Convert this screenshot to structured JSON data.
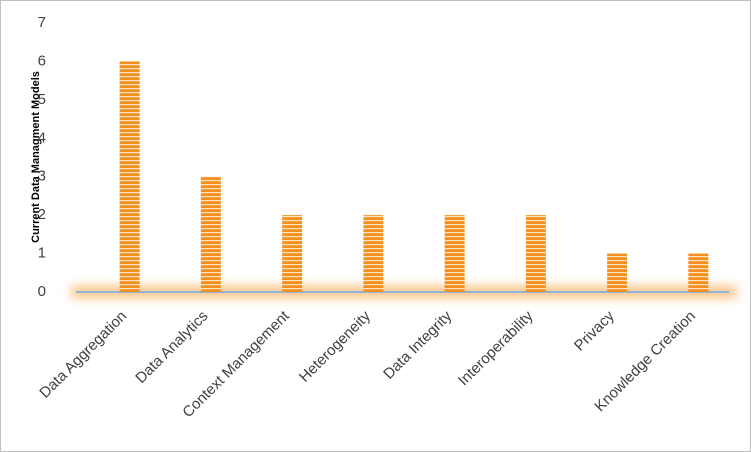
{
  "chart_data": {
    "type": "bar",
    "y_label": "Current Data Managment Models",
    "categories": [
      "Data Aggregation",
      "Data Analytics",
      "Context Management",
      "Heterogeneity",
      "Data Integrity",
      "Interoperability",
      "Privacy",
      "Knowledge Creation"
    ],
    "values": [
      6,
      3,
      2,
      2,
      2,
      2,
      1,
      1
    ],
    "color": "#f4901e",
    "ylim": [
      0,
      7
    ],
    "yticks": [
      0,
      1,
      2,
      3,
      4,
      5,
      6,
      7
    ],
    "grid": false
  }
}
